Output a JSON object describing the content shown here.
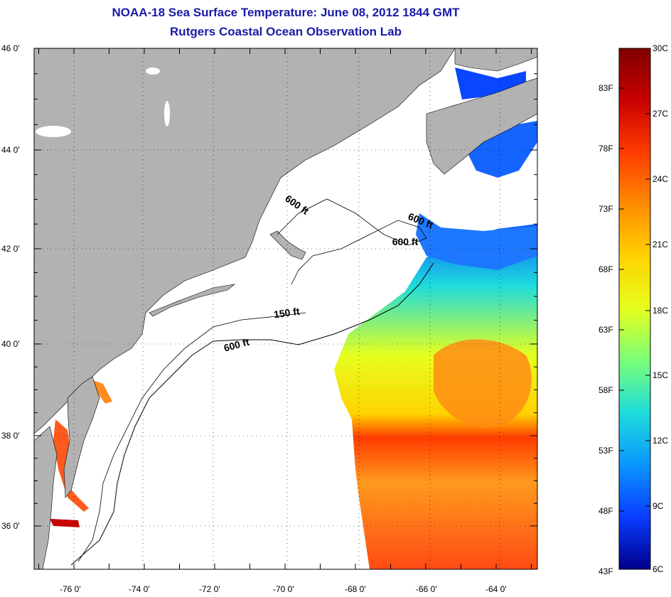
{
  "title": "NOAA-18 Sea Surface Temperature:  June 08, 2012 1844 GMT",
  "subtitle": "Rutgers Coastal Ocean Observation Lab",
  "latitude_labels": [
    "46 0'",
    "44 0'",
    "42 0'",
    "40 0'",
    "38 0'",
    "36 0'"
  ],
  "longitude_labels": [
    "-76 0'",
    "-74 0'",
    "-72 0'",
    "-70 0'",
    "-68 0'",
    "-66 0'",
    "-64 0'"
  ],
  "contour_labels": [
    {
      "text": "600 ft",
      "rotate": 35
    },
    {
      "text": "600 ft",
      "rotate": 22
    },
    {
      "text": "600 ft",
      "rotate": 0
    },
    {
      "text": "150 ft",
      "rotate": -8
    },
    {
      "text": "600 ft",
      "rotate": -15
    }
  ],
  "colorbar": {
    "fahrenheit": [
      "83F",
      "78F",
      "73F",
      "68F",
      "63F",
      "58F",
      "53F",
      "48F",
      "43F"
    ],
    "celsius": [
      "30C",
      "27C",
      "24C",
      "21C",
      "18C",
      "15C",
      "12C",
      "9C",
      "6C"
    ],
    "stops": [
      "#800000",
      "#c80000",
      "#ff3c00",
      "#ff8c00",
      "#ffd200",
      "#e6ff1e",
      "#78ff78",
      "#1edcdc",
      "#0a96ff",
      "#0a3cff",
      "#00008c"
    ]
  },
  "colors": {
    "land": "#b2b2b2",
    "water": "#ffffff",
    "title": "#1a1aa6"
  }
}
